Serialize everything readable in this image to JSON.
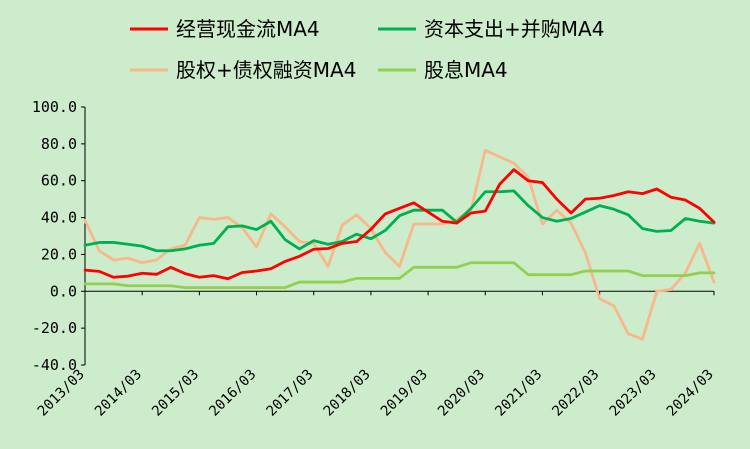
{
  "chart_data": {
    "type": "line",
    "title": "",
    "xlabel": "",
    "ylabel": "",
    "background_color": "#CCECCB",
    "ylim": [
      -40,
      100
    ],
    "yticks": [
      100,
      80,
      60,
      40,
      20,
      0,
      -20,
      -40
    ],
    "ytick_labels": [
      "100.0",
      "80.0",
      "60.0",
      "40.0",
      "20.0",
      "0.0",
      "-20.0",
      "-40.0"
    ],
    "x_start": "2013/03",
    "x_end": "2024/03",
    "x_tick_labels": [
      "2013/03",
      "2014/03",
      "2015/03",
      "2016/03",
      "2017/03",
      "2018/03",
      "2019/03",
      "2020/03",
      "2021/03",
      "2022/03",
      "2023/03",
      "2024/03"
    ],
    "grid": false,
    "legend_position": "top",
    "series": [
      {
        "name": "经营现金流MA4",
        "color": "#FF0000",
        "values": [
          11.5,
          10.8,
          7.6,
          8.2,
          9.8,
          9.2,
          13,
          9.6,
          7.6,
          8.5,
          6.8,
          10.2,
          11,
          12.2,
          16.2,
          19,
          22.8,
          23.2,
          26,
          27,
          33.6,
          42,
          45,
          48,
          43,
          38,
          37,
          42.5,
          43.5,
          58,
          66,
          60,
          59,
          50,
          42.5,
          50,
          50.5,
          52,
          54,
          53,
          55.5,
          51,
          49.5,
          45,
          37.5
        ]
      },
      {
        "name": "资本支出+并购MA4",
        "color": "#00B050",
        "values": [
          25,
          26.5,
          26.5,
          25.5,
          24.5,
          22,
          22,
          23,
          25,
          26,
          35,
          35.5,
          33.5,
          38,
          28,
          23,
          27.5,
          25.5,
          27,
          31,
          28.5,
          33,
          41,
          44,
          44,
          44,
          37.5,
          45,
          54,
          54,
          54.5,
          46.5,
          40,
          38,
          39.5,
          43,
          46.5,
          44.5,
          41.5,
          34,
          32.5,
          33,
          39.5,
          38,
          37
        ]
      },
      {
        "name": "股权+债权融资MA4",
        "color": "#F8B88B",
        "values": [
          38.5,
          22,
          17,
          18,
          15.5,
          17,
          23,
          25,
          40,
          39,
          40,
          34.5,
          24,
          42,
          35,
          27,
          26,
          13.5,
          36,
          41.5,
          34,
          21,
          13.5,
          36.5,
          36.5,
          36.5,
          39,
          44,
          76.5,
          73,
          69.5,
          62,
          36.5,
          44,
          37,
          21,
          -4,
          -8,
          -23,
          -26,
          0,
          1,
          10,
          26,
          5
        ]
      },
      {
        "name": "股息MA4",
        "color": "#92D050",
        "values": [
          4,
          4,
          4,
          3,
          3,
          3,
          3,
          2,
          2,
          2,
          2,
          2,
          2,
          2,
          2,
          5,
          5,
          5,
          5,
          7,
          7,
          7,
          7,
          13,
          13,
          13,
          13,
          15.5,
          15.5,
          15.5,
          15.5,
          9,
          9,
          9,
          9,
          11,
          11,
          11,
          11,
          8.5,
          8.5,
          8.5,
          8.5,
          10,
          10
        ]
      }
    ]
  }
}
